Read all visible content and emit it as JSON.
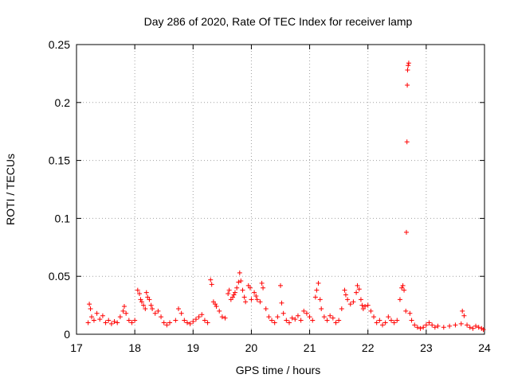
{
  "chart_data": {
    "type": "scatter",
    "title": "Day 286 of 2020, Rate Of TEC Index for receiver lamp",
    "xlabel": "GPS time / hours",
    "ylabel": "ROTI / TECUs",
    "xlim": [
      17,
      24
    ],
    "ylim": [
      0,
      0.25
    ],
    "xticks": [
      17,
      18,
      19,
      20,
      21,
      22,
      23,
      24
    ],
    "yticks": [
      0,
      0.05,
      0.1,
      0.15,
      0.2,
      0.25
    ],
    "ytick_labels": [
      "0",
      "0.05",
      "0.1",
      "0.15",
      "0.2",
      "0.25"
    ],
    "grid": true,
    "marker": "+",
    "color": "#ff0000",
    "series": [
      {
        "name": "ROTI",
        "points": [
          [
            17.2,
            0.01
          ],
          [
            17.22,
            0.026
          ],
          [
            17.24,
            0.022
          ],
          [
            17.26,
            0.015
          ],
          [
            17.3,
            0.012
          ],
          [
            17.35,
            0.018
          ],
          [
            17.4,
            0.013
          ],
          [
            17.45,
            0.016
          ],
          [
            17.5,
            0.01
          ],
          [
            17.55,
            0.012
          ],
          [
            17.6,
            0.009
          ],
          [
            17.65,
            0.011
          ],
          [
            17.7,
            0.01
          ],
          [
            17.75,
            0.015
          ],
          [
            17.8,
            0.02
          ],
          [
            17.82,
            0.024
          ],
          [
            17.85,
            0.018
          ],
          [
            17.9,
            0.012
          ],
          [
            17.95,
            0.01
          ],
          [
            18.0,
            0.012
          ],
          [
            18.05,
            0.038
          ],
          [
            18.08,
            0.035
          ],
          [
            18.1,
            0.03
          ],
          [
            18.12,
            0.028
          ],
          [
            18.15,
            0.025
          ],
          [
            18.18,
            0.022
          ],
          [
            18.2,
            0.036
          ],
          [
            18.22,
            0.032
          ],
          [
            18.25,
            0.03
          ],
          [
            18.28,
            0.025
          ],
          [
            18.3,
            0.022
          ],
          [
            18.35,
            0.018
          ],
          [
            18.4,
            0.02
          ],
          [
            18.45,
            0.015
          ],
          [
            18.5,
            0.01
          ],
          [
            18.55,
            0.008
          ],
          [
            18.6,
            0.01
          ],
          [
            18.7,
            0.012
          ],
          [
            18.75,
            0.022
          ],
          [
            18.8,
            0.018
          ],
          [
            18.85,
            0.012
          ],
          [
            18.9,
            0.01
          ],
          [
            18.95,
            0.009
          ],
          [
            19.0,
            0.011
          ],
          [
            19.05,
            0.013
          ],
          [
            19.1,
            0.015
          ],
          [
            19.15,
            0.017
          ],
          [
            19.2,
            0.012
          ],
          [
            19.25,
            0.01
          ],
          [
            19.3,
            0.047
          ],
          [
            19.32,
            0.043
          ],
          [
            19.35,
            0.028
          ],
          [
            19.38,
            0.026
          ],
          [
            19.4,
            0.024
          ],
          [
            19.45,
            0.02
          ],
          [
            19.5,
            0.015
          ],
          [
            19.55,
            0.014
          ],
          [
            19.6,
            0.035
          ],
          [
            19.62,
            0.038
          ],
          [
            19.65,
            0.03
          ],
          [
            19.68,
            0.032
          ],
          [
            19.7,
            0.034
          ],
          [
            19.72,
            0.036
          ],
          [
            19.75,
            0.04
          ],
          [
            19.78,
            0.045
          ],
          [
            19.8,
            0.053
          ],
          [
            19.82,
            0.046
          ],
          [
            19.85,
            0.038
          ],
          [
            19.88,
            0.032
          ],
          [
            19.9,
            0.028
          ],
          [
            19.95,
            0.042
          ],
          [
            19.98,
            0.04
          ],
          [
            20.0,
            0.03
          ],
          [
            20.05,
            0.036
          ],
          [
            20.08,
            0.033
          ],
          [
            20.1,
            0.03
          ],
          [
            20.15,
            0.028
          ],
          [
            20.18,
            0.044
          ],
          [
            20.2,
            0.04
          ],
          [
            20.25,
            0.022
          ],
          [
            20.3,
            0.015
          ],
          [
            20.35,
            0.012
          ],
          [
            20.4,
            0.01
          ],
          [
            20.45,
            0.015
          ],
          [
            20.5,
            0.042
          ],
          [
            20.52,
            0.027
          ],
          [
            20.55,
            0.018
          ],
          [
            20.6,
            0.012
          ],
          [
            20.65,
            0.01
          ],
          [
            20.7,
            0.014
          ],
          [
            20.75,
            0.013
          ],
          [
            20.8,
            0.016
          ],
          [
            20.85,
            0.012
          ],
          [
            20.9,
            0.02
          ],
          [
            20.95,
            0.018
          ],
          [
            21.0,
            0.015
          ],
          [
            21.05,
            0.012
          ],
          [
            21.1,
            0.032
          ],
          [
            21.12,
            0.038
          ],
          [
            21.15,
            0.044
          ],
          [
            21.18,
            0.03
          ],
          [
            21.2,
            0.022
          ],
          [
            21.25,
            0.015
          ],
          [
            21.3,
            0.012
          ],
          [
            21.35,
            0.016
          ],
          [
            21.4,
            0.014
          ],
          [
            21.45,
            0.01
          ],
          [
            21.5,
            0.012
          ],
          [
            21.55,
            0.022
          ],
          [
            21.6,
            0.038
          ],
          [
            21.62,
            0.034
          ],
          [
            21.65,
            0.03
          ],
          [
            21.7,
            0.026
          ],
          [
            21.75,
            0.028
          ],
          [
            21.8,
            0.036
          ],
          [
            21.82,
            0.042
          ],
          [
            21.85,
            0.039
          ],
          [
            21.88,
            0.03
          ],
          [
            21.9,
            0.025
          ],
          [
            21.92,
            0.022
          ],
          [
            21.95,
            0.024
          ],
          [
            22.0,
            0.025
          ],
          [
            22.05,
            0.02
          ],
          [
            22.1,
            0.015
          ],
          [
            22.15,
            0.01
          ],
          [
            22.2,
            0.012
          ],
          [
            22.25,
            0.008
          ],
          [
            22.3,
            0.01
          ],
          [
            22.35,
            0.015
          ],
          [
            22.4,
            0.012
          ],
          [
            22.45,
            0.01
          ],
          [
            22.5,
            0.012
          ],
          [
            22.55,
            0.03
          ],
          [
            22.58,
            0.04
          ],
          [
            22.6,
            0.042
          ],
          [
            22.62,
            0.038
          ],
          [
            22.65,
            0.02
          ],
          [
            22.66,
            0.088
          ],
          [
            22.67,
            0.166
          ],
          [
            22.675,
            0.215
          ],
          [
            22.68,
            0.228
          ],
          [
            22.69,
            0.232
          ],
          [
            22.7,
            0.234
          ],
          [
            22.72,
            0.018
          ],
          [
            22.75,
            0.012
          ],
          [
            22.8,
            0.008
          ],
          [
            22.85,
            0.006
          ],
          [
            22.9,
            0.005
          ],
          [
            22.95,
            0.006
          ],
          [
            23.0,
            0.008
          ],
          [
            23.05,
            0.01
          ],
          [
            23.1,
            0.008
          ],
          [
            23.15,
            0.006
          ],
          [
            23.2,
            0.007
          ],
          [
            23.3,
            0.006
          ],
          [
            23.4,
            0.007
          ],
          [
            23.5,
            0.008
          ],
          [
            23.6,
            0.009
          ],
          [
            23.62,
            0.02
          ],
          [
            23.65,
            0.016
          ],
          [
            23.7,
            0.008
          ],
          [
            23.75,
            0.006
          ],
          [
            23.8,
            0.005
          ],
          [
            23.85,
            0.007
          ],
          [
            23.9,
            0.006
          ],
          [
            23.95,
            0.005
          ],
          [
            23.98,
            0.004
          ]
        ]
      }
    ]
  }
}
